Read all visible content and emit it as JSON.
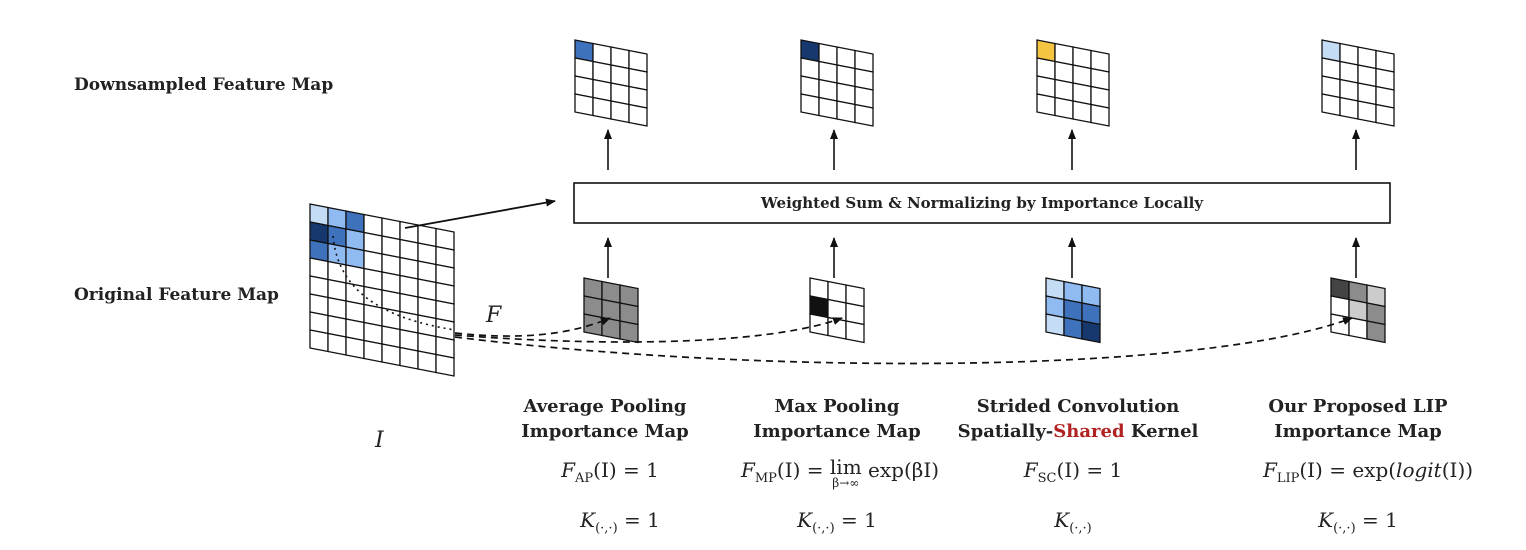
{
  "row_labels": {
    "downsampled": "Downsampled Feature Map",
    "original": "Original Feature Map"
  },
  "center_box": {
    "label": "Weighted Sum & Normalizing by Importance Locally"
  },
  "math_labels": {
    "input": "I",
    "function": "F"
  },
  "colors": {
    "light_blue": "#c5dcf5",
    "mid_blue": "#8fbaf2",
    "blue": "#3f72bd",
    "dark_blue": "#17386e",
    "gold": "#f5c542",
    "gray": "#8c8c8c",
    "light_gray": "#cccccc",
    "dark_gray": "#444444",
    "black": "#111111",
    "white": "#ffffff",
    "accent_red": "#b22222"
  },
  "columns": [
    {
      "id": "avg",
      "caption_line1": "Average Pooling",
      "caption_line2": "Importance Map",
      "f_name": "F",
      "f_sub": "AP",
      "f_rhs": "(I) = 1",
      "k_name": "K",
      "k_sub": "(·,·)",
      "k_rhs": " = 1",
      "top_highlight": "#3f72bd",
      "importance_cells": [
        "#8c8c8c",
        "#8c8c8c",
        "#8c8c8c",
        "#8c8c8c",
        "#8c8c8c",
        "#8c8c8c",
        "#8c8c8c",
        "#8c8c8c",
        "#8c8c8c"
      ]
    },
    {
      "id": "max",
      "caption_line1": "Max Pooling",
      "caption_line2": "Importance Map",
      "f_name": "F",
      "f_sub": "MP",
      "f_rhs_pre": "(I) = ",
      "lim": "lim",
      "lim_sub": "β→∞",
      "f_rhs_post": " exp(βI)",
      "k_name": "K",
      "k_sub": "(·,·)",
      "k_rhs": " = 1",
      "top_highlight": "#17386e",
      "importance_cells": [
        "#ffffff",
        "#ffffff",
        "#ffffff",
        "#111111",
        "#ffffff",
        "#ffffff",
        "#ffffff",
        "#ffffff",
        "#ffffff"
      ]
    },
    {
      "id": "strided",
      "caption_line1": "Strided Convolution",
      "caption_line2_pre": "Spatially-",
      "caption_line2_red": "Shared",
      "caption_line2_post": " Kernel",
      "f_name": "F",
      "f_sub": "SC",
      "f_rhs": "(I) = 1",
      "k_name": "K",
      "k_sub": "(·,·)",
      "k_rhs": "",
      "top_highlight": "#f5c542",
      "importance_cells": [
        "#c5dcf5",
        "#8fbaf2",
        "#8fbaf2",
        "#8fbaf2",
        "#3f72bd",
        "#3f72bd",
        "#c5dcf5",
        "#3f72bd",
        "#17386e"
      ]
    },
    {
      "id": "lip",
      "caption_line1": "Our Proposed LIP",
      "caption_line2": "Importance Map",
      "f_name": "F",
      "f_sub": "LIP",
      "f_rhs_pre": "(I) = exp(",
      "f_rhs_ital": "logit",
      "f_rhs_post": "(I))",
      "k_name": "K",
      "k_sub": "(·,·)",
      "k_rhs": " = 1",
      "top_highlight": "#c5dcf5",
      "importance_cells": [
        "#444444",
        "#8c8c8c",
        "#cccccc",
        "#ffffff",
        "#cccccc",
        "#8c8c8c",
        "#ffffff",
        "#ffffff",
        "#8c8c8c"
      ]
    }
  ],
  "original_map_cells": {
    "0,0": "#c5dcf5",
    "0,1": "#8fbaf2",
    "0,2": "#3f72bd",
    "1,0": "#17386e",
    "1,1": "#3f72bd",
    "1,2": "#8fbaf2",
    "2,0": "#3f72bd",
    "2,1": "#8fbaf2",
    "2,2": "#8fbaf2"
  }
}
